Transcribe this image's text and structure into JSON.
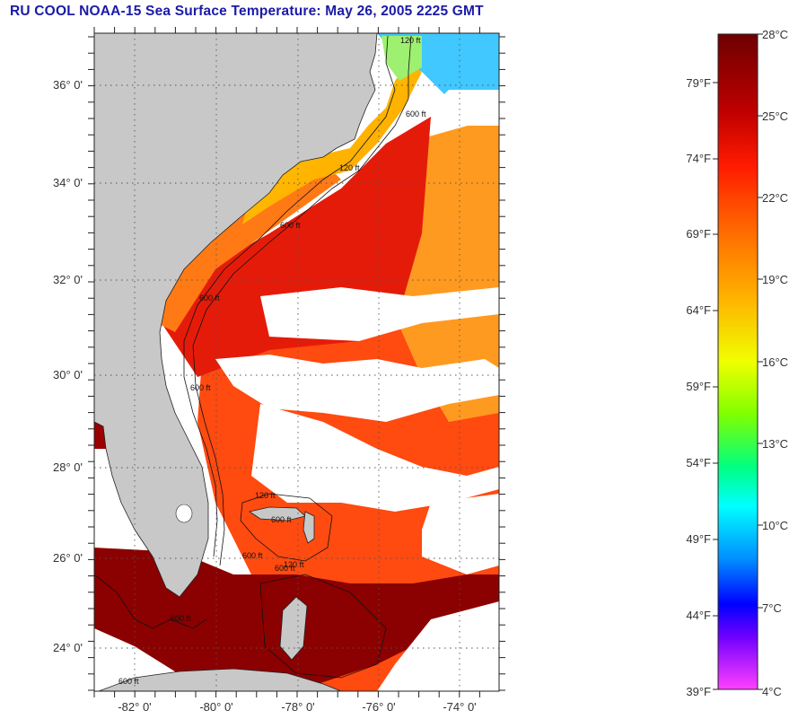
{
  "title": "RU COOL  NOAA-15  Sea Surface Temperature:  May 26, 2005 2225 GMT",
  "map": {
    "lat_labels": [
      "36° 0'",
      "34° 0'",
      "32° 0'",
      "30° 0'",
      "28° 0'",
      "26° 0'",
      "24° 0'"
    ],
    "lon_labels": [
      "-82° 0'",
      "-80° 0'",
      "-78° 0'",
      "-76° 0'",
      "-74° 0'"
    ],
    "depth_labels": [
      "120 ft",
      "600 ft",
      "120 ft",
      "600 ft",
      "600 ft",
      "600 ft",
      "120 ft",
      "600 ft",
      "600 ft",
      "600 ft",
      "120 ft",
      "600 ft",
      "600 ft"
    ],
    "land_color": "#c8c8c8",
    "cloud_color": "#ffffff"
  },
  "colorbar": {
    "celsius_labels": [
      "28°C",
      "25°C",
      "22°C",
      "19°C",
      "16°C",
      "13°C",
      "10°C",
      "7°C",
      "4°C"
    ],
    "fahrenheit_labels": [
      "79°F",
      "74°F",
      "69°F",
      "64°F",
      "59°F",
      "54°F",
      "49°F",
      "44°F",
      "39°F"
    ],
    "colors": [
      "#7a0000",
      "#b00000",
      "#ff0000",
      "#ff5a00",
      "#ffa000",
      "#ffff00",
      "#80ff00",
      "#00ff80",
      "#00ffff",
      "#0080ff",
      "#0000ff",
      "#8000ff",
      "#ff40ff"
    ]
  }
}
